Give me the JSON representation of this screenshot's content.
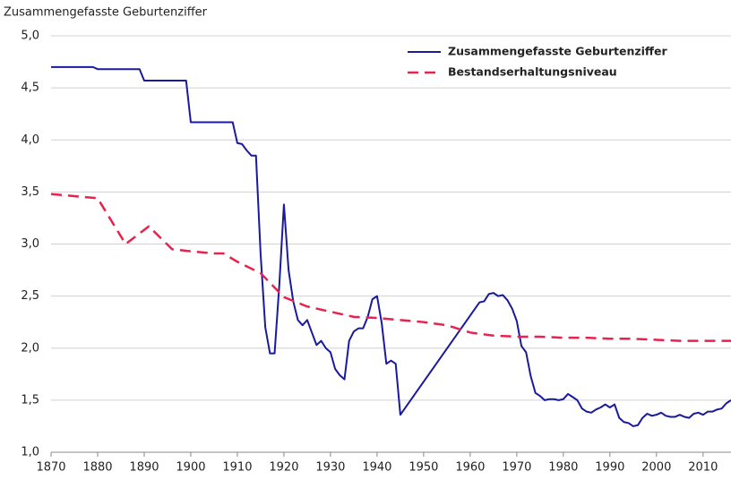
{
  "chart_data": {
    "type": "line",
    "y_label": "Zusammengefasste Geburtenziffer",
    "xlim": [
      1870,
      2016
    ],
    "xticks": [
      1870,
      1880,
      1890,
      1900,
      1910,
      1920,
      1930,
      1940,
      1950,
      1960,
      1970,
      1980,
      1990,
      2000,
      2010
    ],
    "ylim": [
      1,
      5
    ],
    "yticks": [
      {
        "value": 1,
        "label": "1,0"
      },
      {
        "value": 1.5,
        "label": "1,5"
      },
      {
        "value": 2,
        "label": "2,0"
      },
      {
        "value": 2.5,
        "label": "2,5"
      },
      {
        "value": 3,
        "label": "3,0"
      },
      {
        "value": 3.5,
        "label": "3,5"
      },
      {
        "value": 4,
        "label": "4,0"
      },
      {
        "value": 4.5,
        "label": "4,5"
      },
      {
        "value": 5,
        "label": "5,0"
      }
    ],
    "grid": true,
    "legend": "top-right",
    "series": [
      {
        "name": "Zusammengefasste Geburtenziffer",
        "color": "#1a1a9c",
        "dashed": false,
        "x": [
          1870,
          1879,
          1880,
          1889,
          1890,
          1899,
          1900,
          1909,
          1910,
          1911,
          1912,
          1913,
          1914,
          1915,
          1916,
          1917,
          1918,
          1919,
          1920,
          1921,
          1922,
          1923,
          1924,
          1925,
          1926,
          1927,
          1928,
          1929,
          1930,
          1931,
          1932,
          1933,
          1934,
          1935,
          1936,
          1937,
          1938,
          1939,
          1940,
          1941,
          1942,
          1943,
          1944,
          1945,
          1962,
          1963,
          1964,
          1965,
          1966,
          1967,
          1968,
          1969,
          1970,
          1971,
          1972,
          1973,
          1974,
          1975,
          1976,
          1977,
          1978,
          1979,
          1980,
          1981,
          1982,
          1983,
          1984,
          1985,
          1986,
          1987,
          1988,
          1989,
          1990,
          1991,
          1992,
          1993,
          1994,
          1995,
          1996,
          1997,
          1998,
          1999,
          2000,
          2001,
          2002,
          2003,
          2004,
          2005,
          2006,
          2007,
          2008,
          2009,
          2010,
          2011,
          2012,
          2013,
          2014,
          2015,
          2016
        ],
        "values": [
          4.7,
          4.7,
          4.68,
          4.68,
          4.57,
          4.57,
          4.17,
          4.17,
          3.97,
          3.96,
          3.9,
          3.85,
          3.85,
          2.9,
          2.2,
          1.95,
          1.95,
          2.6,
          3.38,
          2.75,
          2.45,
          2.27,
          2.22,
          2.27,
          2.15,
          2.03,
          2.07,
          2.0,
          1.96,
          1.8,
          1.74,
          1.7,
          2.07,
          2.16,
          2.19,
          2.19,
          2.3,
          2.47,
          2.5,
          2.24,
          1.85,
          1.88,
          1.85,
          1.36,
          2.44,
          2.45,
          2.52,
          2.53,
          2.5,
          2.51,
          2.46,
          2.38,
          2.26,
          2.02,
          1.96,
          1.73,
          1.57,
          1.54,
          1.5,
          1.51,
          1.51,
          1.5,
          1.51,
          1.56,
          1.53,
          1.5,
          1.42,
          1.39,
          1.38,
          1.41,
          1.43,
          1.46,
          1.43,
          1.46,
          1.33,
          1.29,
          1.28,
          1.25,
          1.26,
          1.33,
          1.37,
          1.35,
          1.36,
          1.38,
          1.35,
          1.34,
          1.34,
          1.36,
          1.34,
          1.33,
          1.37,
          1.38,
          1.36,
          1.39,
          1.39,
          1.41,
          1.42,
          1.47,
          1.5
        ]
      },
      {
        "name": "Bestandserhaltungsniveau",
        "color": "#e8224f",
        "dashed": true,
        "x": [
          1870,
          1880,
          1886,
          1891,
          1896,
          1900,
          1905,
          1907,
          1910,
          1915,
          1920,
          1925,
          1930,
          1935,
          1940,
          1945,
          1950,
          1955,
          1960,
          1965,
          1970,
          1975,
          1980,
          1985,
          1990,
          1995,
          2000,
          2005,
          2010,
          2016
        ],
        "values": [
          3.48,
          3.44,
          3.0,
          3.17,
          2.95,
          2.93,
          2.91,
          2.91,
          2.83,
          2.72,
          2.49,
          2.4,
          2.35,
          2.3,
          2.29,
          2.27,
          2.25,
          2.22,
          2.15,
          2.12,
          2.11,
          2.11,
          2.1,
          2.1,
          2.09,
          2.09,
          2.08,
          2.07,
          2.07,
          2.07
        ]
      }
    ]
  }
}
